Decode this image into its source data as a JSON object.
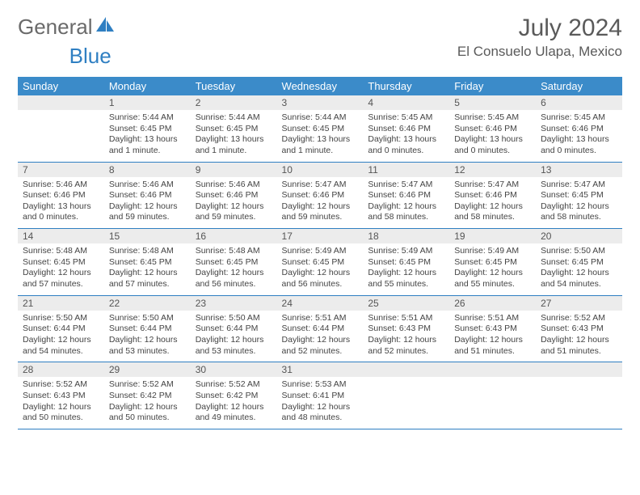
{
  "logo": {
    "text1": "General",
    "text2": "Blue"
  },
  "title": "July 2024",
  "location": "El Consuelo Ulapa, Mexico",
  "colors": {
    "header_bg": "#3b8bc9",
    "header_text": "#ffffff",
    "daynum_bg": "#ececec",
    "border": "#2f7fc2",
    "body_text": "#444444",
    "title_text": "#5a5a5a"
  },
  "day_headers": [
    "Sunday",
    "Monday",
    "Tuesday",
    "Wednesday",
    "Thursday",
    "Friday",
    "Saturday"
  ],
  "weeks": [
    [
      {
        "n": "",
        "sr": "",
        "ss": "",
        "dl": ""
      },
      {
        "n": "1",
        "sr": "5:44 AM",
        "ss": "6:45 PM",
        "dl": "13 hours and 1 minute."
      },
      {
        "n": "2",
        "sr": "5:44 AM",
        "ss": "6:45 PM",
        "dl": "13 hours and 1 minute."
      },
      {
        "n": "3",
        "sr": "5:44 AM",
        "ss": "6:45 PM",
        "dl": "13 hours and 1 minute."
      },
      {
        "n": "4",
        "sr": "5:45 AM",
        "ss": "6:46 PM",
        "dl": "13 hours and 0 minutes."
      },
      {
        "n": "5",
        "sr": "5:45 AM",
        "ss": "6:46 PM",
        "dl": "13 hours and 0 minutes."
      },
      {
        "n": "6",
        "sr": "5:45 AM",
        "ss": "6:46 PM",
        "dl": "13 hours and 0 minutes."
      }
    ],
    [
      {
        "n": "7",
        "sr": "5:46 AM",
        "ss": "6:46 PM",
        "dl": "13 hours and 0 minutes."
      },
      {
        "n": "8",
        "sr": "5:46 AM",
        "ss": "6:46 PM",
        "dl": "12 hours and 59 minutes."
      },
      {
        "n": "9",
        "sr": "5:46 AM",
        "ss": "6:46 PM",
        "dl": "12 hours and 59 minutes."
      },
      {
        "n": "10",
        "sr": "5:47 AM",
        "ss": "6:46 PM",
        "dl": "12 hours and 59 minutes."
      },
      {
        "n": "11",
        "sr": "5:47 AM",
        "ss": "6:46 PM",
        "dl": "12 hours and 58 minutes."
      },
      {
        "n": "12",
        "sr": "5:47 AM",
        "ss": "6:46 PM",
        "dl": "12 hours and 58 minutes."
      },
      {
        "n": "13",
        "sr": "5:47 AM",
        "ss": "6:45 PM",
        "dl": "12 hours and 58 minutes."
      }
    ],
    [
      {
        "n": "14",
        "sr": "5:48 AM",
        "ss": "6:45 PM",
        "dl": "12 hours and 57 minutes."
      },
      {
        "n": "15",
        "sr": "5:48 AM",
        "ss": "6:45 PM",
        "dl": "12 hours and 57 minutes."
      },
      {
        "n": "16",
        "sr": "5:48 AM",
        "ss": "6:45 PM",
        "dl": "12 hours and 56 minutes."
      },
      {
        "n": "17",
        "sr": "5:49 AM",
        "ss": "6:45 PM",
        "dl": "12 hours and 56 minutes."
      },
      {
        "n": "18",
        "sr": "5:49 AM",
        "ss": "6:45 PM",
        "dl": "12 hours and 55 minutes."
      },
      {
        "n": "19",
        "sr": "5:49 AM",
        "ss": "6:45 PM",
        "dl": "12 hours and 55 minutes."
      },
      {
        "n": "20",
        "sr": "5:50 AM",
        "ss": "6:45 PM",
        "dl": "12 hours and 54 minutes."
      }
    ],
    [
      {
        "n": "21",
        "sr": "5:50 AM",
        "ss": "6:44 PM",
        "dl": "12 hours and 54 minutes."
      },
      {
        "n": "22",
        "sr": "5:50 AM",
        "ss": "6:44 PM",
        "dl": "12 hours and 53 minutes."
      },
      {
        "n": "23",
        "sr": "5:50 AM",
        "ss": "6:44 PM",
        "dl": "12 hours and 53 minutes."
      },
      {
        "n": "24",
        "sr": "5:51 AM",
        "ss": "6:44 PM",
        "dl": "12 hours and 52 minutes."
      },
      {
        "n": "25",
        "sr": "5:51 AM",
        "ss": "6:43 PM",
        "dl": "12 hours and 52 minutes."
      },
      {
        "n": "26",
        "sr": "5:51 AM",
        "ss": "6:43 PM",
        "dl": "12 hours and 51 minutes."
      },
      {
        "n": "27",
        "sr": "5:52 AM",
        "ss": "6:43 PM",
        "dl": "12 hours and 51 minutes."
      }
    ],
    [
      {
        "n": "28",
        "sr": "5:52 AM",
        "ss": "6:43 PM",
        "dl": "12 hours and 50 minutes."
      },
      {
        "n": "29",
        "sr": "5:52 AM",
        "ss": "6:42 PM",
        "dl": "12 hours and 50 minutes."
      },
      {
        "n": "30",
        "sr": "5:52 AM",
        "ss": "6:42 PM",
        "dl": "12 hours and 49 minutes."
      },
      {
        "n": "31",
        "sr": "5:53 AM",
        "ss": "6:41 PM",
        "dl": "12 hours and 48 minutes."
      },
      {
        "n": "",
        "sr": "",
        "ss": "",
        "dl": ""
      },
      {
        "n": "",
        "sr": "",
        "ss": "",
        "dl": ""
      },
      {
        "n": "",
        "sr": "",
        "ss": "",
        "dl": ""
      }
    ]
  ],
  "labels": {
    "sunrise": "Sunrise:",
    "sunset": "Sunset:",
    "daylight": "Daylight:"
  }
}
